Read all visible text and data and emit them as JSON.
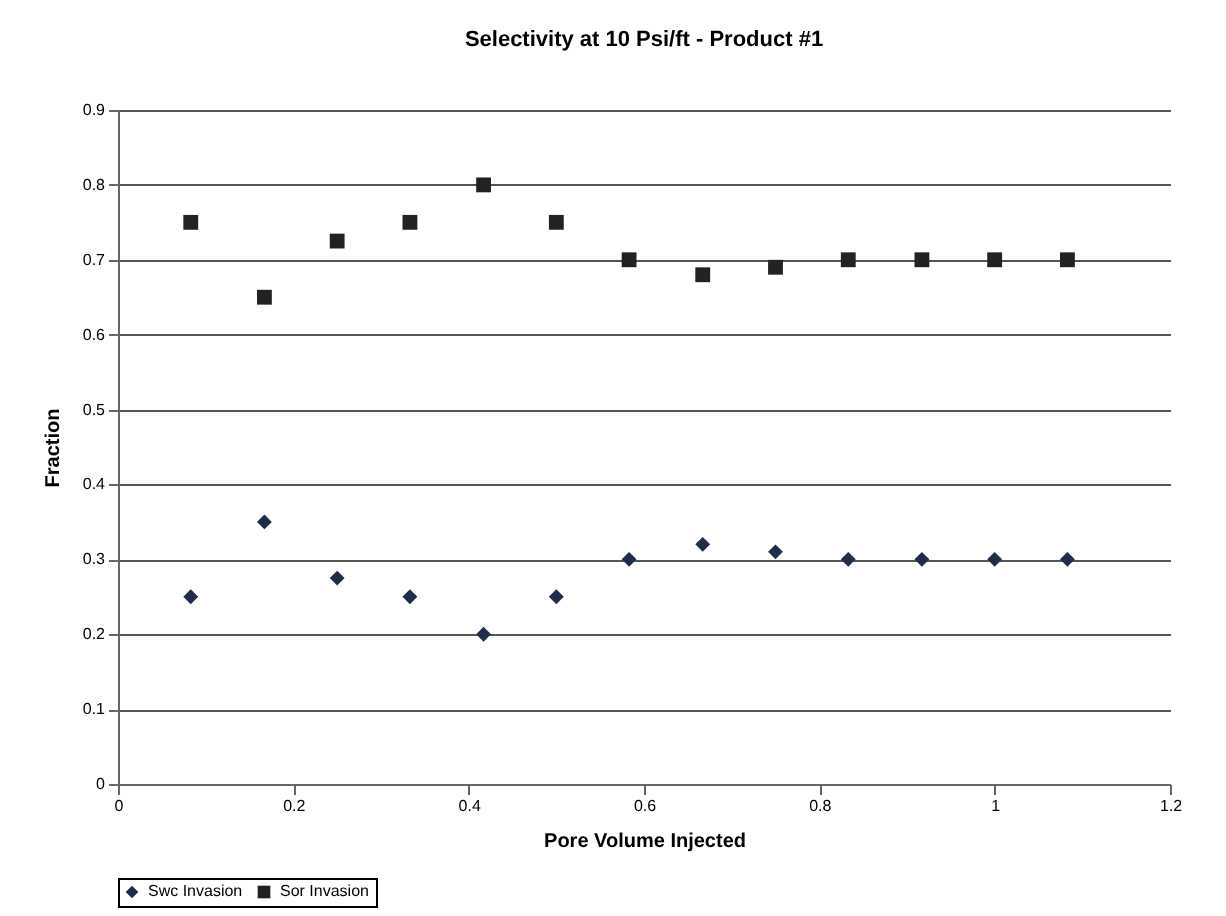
{
  "chart_data": {
    "type": "scatter",
    "title": "Selectivity at 10 Psi/ft - Product #1",
    "xlabel": "Pore Volume Injected",
    "ylabel": "Fraction",
    "x": [
      0.083,
      0.167,
      0.25,
      0.333,
      0.417,
      0.5,
      0.583,
      0.667,
      0.75,
      0.833,
      0.917,
      1.0,
      1.083
    ],
    "series": [
      {
        "name": "Swc Invasion",
        "color": "#1f2d4a",
        "marker": "diamond",
        "values": [
          0.25,
          0.35,
          0.275,
          0.25,
          0.2,
          0.25,
          0.3,
          0.32,
          0.31,
          0.3,
          0.3,
          0.3,
          0.3
        ]
      },
      {
        "name": "Sor Invasion",
        "color": "#222222",
        "marker": "square",
        "values": [
          0.75,
          0.65,
          0.725,
          0.75,
          0.8,
          0.75,
          0.7,
          0.68,
          0.69,
          0.7,
          0.7,
          0.7,
          0.7
        ]
      }
    ],
    "xlim": [
      0,
      1.2
    ],
    "xticks": [
      0,
      0.2,
      0.4,
      0.6,
      0.8,
      1,
      1.2
    ],
    "ylim": [
      0,
      0.9
    ],
    "yticks": [
      0,
      0.1,
      0.2,
      0.3,
      0.4,
      0.5,
      0.6,
      0.7,
      0.8,
      0.9
    ],
    "grid": "y",
    "legend": "bottom"
  }
}
